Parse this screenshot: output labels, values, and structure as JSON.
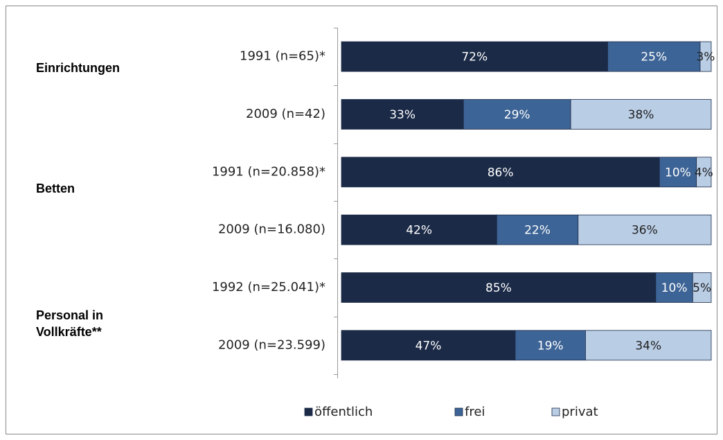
{
  "chart_data": {
    "type": "stacked-bar-horizontal",
    "groups": [
      "Einrichtungen",
      "Betten",
      "Personal in Vollkräfte**"
    ],
    "categories": [
      "1991 (n=65)*",
      "2009 (n=42)",
      "1991 (n=20.858)*",
      "2009 (n=16.080)",
      "1992 (n=25.041)*",
      "2009 (n=23.599)"
    ],
    "series": [
      {
        "name": "öffentlich",
        "color": "#1b2a47",
        "values": [
          72,
          33,
          86,
          42,
          85,
          47
        ],
        "value_labels": [
          "72%",
          "33%",
          "86%",
          "42%",
          "85%",
          "47%"
        ]
      },
      {
        "name": "frei",
        "color": "#3d6496",
        "values": [
          25,
          29,
          10,
          22,
          10,
          19
        ],
        "value_labels": [
          "25%",
          "29%",
          "10%",
          "22%",
          "10%",
          "19%"
        ]
      },
      {
        "name": "privat",
        "color": "#b9cde5",
        "values": [
          3,
          38,
          4,
          36,
          5,
          34
        ],
        "value_labels": [
          "3%",
          "38%",
          "4%",
          "36%",
          "5%",
          "34%"
        ]
      }
    ],
    "xlim": [
      0,
      100
    ]
  }
}
